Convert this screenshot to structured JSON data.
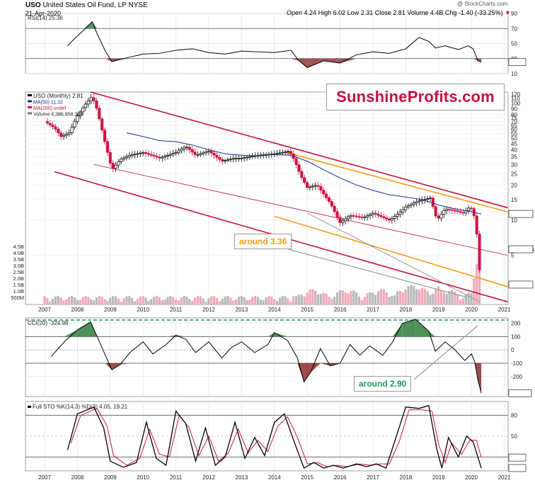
{
  "header": {
    "symbol": "USO",
    "name": "United States Oil Fund, LP",
    "exchange": "NYSE",
    "date": "21-Apr-2020",
    "watermark": "@ StockCharts.com",
    "open_label": "Open",
    "open": "4.24",
    "high_label": "High",
    "high": "6.02",
    "low_label": "Low",
    "low": "2.31",
    "close_label": "Close",
    "close": "2.81",
    "volume_label": "Volume",
    "volume": "4.4B",
    "chg_label": "Chg",
    "chg": "-1.40 (-33.25%)"
  },
  "logo_text": "SunshineProfits.com",
  "callouts": {
    "orange": "around 3.36",
    "green": "around 2.90"
  },
  "colors": {
    "up_candle": "#000000",
    "down_candle": "#cc1543",
    "ma50": "#1f2d8a",
    "ma200": "#cc1543",
    "channel": "#c4123f",
    "orange": "#f39c12",
    "gray_trend": "#8c8c8c",
    "green_fill": "#2f7d3e",
    "red_fill": "#8a2c2c",
    "sto_d": "#cc1543"
  },
  "chart_data": [
    {
      "type": "line",
      "panel": "rsi",
      "title": "RSI(14) 25.36",
      "series": [
        {
          "name": "RSI(14)",
          "last": 25.36,
          "points": [
            [
              2007.7,
              47
            ],
            [
              2007.9,
              56
            ],
            [
              2008.2,
              68
            ],
            [
              2008.45,
              79
            ],
            [
              2008.6,
              63
            ],
            [
              2008.85,
              40
            ],
            [
              2009.05,
              26
            ],
            [
              2009.5,
              31
            ],
            [
              2010,
              36
            ],
            [
              2010.5,
              37
            ],
            [
              2011,
              41
            ],
            [
              2011.5,
              43
            ],
            [
              2012,
              38
            ],
            [
              2012.5,
              36
            ],
            [
              2013,
              40
            ],
            [
              2013.5,
              39
            ],
            [
              2014,
              38
            ],
            [
              2014.5,
              41
            ],
            [
              2014.75,
              27
            ],
            [
              2015,
              18
            ],
            [
              2015.5,
              27
            ],
            [
              2016,
              24
            ],
            [
              2016.5,
              35
            ],
            [
              2017,
              39
            ],
            [
              2017.5,
              37
            ],
            [
              2018,
              43
            ],
            [
              2018.4,
              58
            ],
            [
              2018.7,
              53
            ],
            [
              2018.9,
              44
            ],
            [
              2019.2,
              47
            ],
            [
              2019.6,
              42
            ],
            [
              2019.9,
              47
            ],
            [
              2020.05,
              43
            ],
            [
              2020.2,
              27
            ],
            [
              2020.3,
              25.36
            ]
          ]
        }
      ],
      "ylim": [
        10,
        90
      ],
      "y_ticks": [
        90,
        70,
        50,
        30,
        10
      ],
      "ref_lines": [
        70,
        30
      ]
    },
    {
      "type": "candlestick",
      "panel": "price",
      "title": "USO (Monthly) 2.81",
      "log_scale": true,
      "legend": [
        "USO (Monthly) 2.81",
        "MA(50) 11.32",
        "MA(200) undef",
        "Volume 4,386,958,336"
      ],
      "y_ticks": [
        120,
        110,
        100,
        90,
        80,
        75,
        70,
        65,
        60,
        55,
        50,
        45,
        40,
        35,
        30,
        25,
        20,
        15,
        10,
        5
      ],
      "ylim": [
        1.9,
        125
      ],
      "x_ticks": [
        "2007",
        "2008",
        "2009",
        "2010",
        "2011",
        "2012",
        "2013",
        "2014",
        "2015",
        "2016",
        "2017",
        "2018",
        "2019",
        "2020",
        "2021"
      ],
      "closes": [
        [
          2007.0,
          70
        ],
        [
          2007.3,
          62
        ],
        [
          2007.5,
          52
        ],
        [
          2007.75,
          56
        ],
        [
          2008.0,
          78
        ],
        [
          2008.2,
          95
        ],
        [
          2008.45,
          115
        ],
        [
          2008.6,
          88
        ],
        [
          2008.85,
          45
        ],
        [
          2009.05,
          27
        ],
        [
          2009.3,
          33
        ],
        [
          2009.6,
          36
        ],
        [
          2010,
          38
        ],
        [
          2010.5,
          34
        ],
        [
          2011,
          38
        ],
        [
          2011.3,
          43
        ],
        [
          2011.6,
          36
        ],
        [
          2012,
          39
        ],
        [
          2012.4,
          32
        ],
        [
          2012.8,
          34
        ],
        [
          2013,
          34
        ],
        [
          2013.5,
          36
        ],
        [
          2014,
          37
        ],
        [
          2014.45,
          39
        ],
        [
          2014.6,
          33
        ],
        [
          2014.8,
          24
        ],
        [
          2015,
          19
        ],
        [
          2015.3,
          20
        ],
        [
          2015.7,
          14
        ],
        [
          2016,
          9.5
        ],
        [
          2016.3,
          11
        ],
        [
          2016.7,
          10.5
        ],
        [
          2017,
          11.5
        ],
        [
          2017.5,
          10
        ],
        [
          2017.8,
          11.5
        ],
        [
          2018,
          13
        ],
        [
          2018.35,
          14.5
        ],
        [
          2018.75,
          15.5
        ],
        [
          2018.95,
          10
        ],
        [
          2019.2,
          12.5
        ],
        [
          2019.5,
          12
        ],
        [
          2019.75,
          11.5
        ],
        [
          2019.95,
          13
        ],
        [
          2020.05,
          12
        ],
        [
          2020.15,
          8.5
        ],
        [
          2020.22,
          4.3
        ],
        [
          2020.3,
          2.81
        ]
      ],
      "series": [
        {
          "name": "MA(50)",
          "last": 11.32,
          "points": [
            [
              2009.5,
              56
            ],
            [
              2010,
              52
            ],
            [
              2010.5,
              48
            ],
            [
              2011,
              47
            ],
            [
              2011.5,
              44
            ],
            [
              2012,
              40
            ],
            [
              2012.5,
              37
            ],
            [
              2013,
              36
            ],
            [
              2013.5,
              35.5
            ],
            [
              2014,
              36.5
            ],
            [
              2014.5,
              36
            ],
            [
              2015,
              32
            ],
            [
              2015.5,
              27
            ],
            [
              2016,
              23
            ],
            [
              2016.5,
              20
            ],
            [
              2017,
              18
            ],
            [
              2017.5,
              16.5
            ],
            [
              2018,
              15.8
            ],
            [
              2018.5,
              15
            ],
            [
              2019,
              13.5
            ],
            [
              2019.5,
              12.5
            ],
            [
              2020,
              11.8
            ],
            [
              2020.3,
              11.32
            ]
          ]
        }
      ],
      "volume_max_label": "4.5B",
      "volume_ticks": [
        "4.5B",
        "4.0B",
        "3.5B",
        "3.0B",
        "2.5B",
        "2.0B",
        "1.5B",
        "1.0B",
        "500M"
      ],
      "price_tags": {
        "ma50": "11.32",
        "volume": "4386958336",
        "close": "2.81"
      }
    },
    {
      "type": "line",
      "panel": "cci",
      "title": "CCI(20) -324.98",
      "series": [
        {
          "name": "CCI(20)",
          "last": -324.98,
          "points": [
            [
              2007.2,
              -50
            ],
            [
              2007.6,
              60
            ],
            [
              2008.0,
              150
            ],
            [
              2008.4,
              210
            ],
            [
              2008.6,
              100
            ],
            [
              2008.85,
              -40
            ],
            [
              2009.05,
              -150
            ],
            [
              2009.3,
              -110
            ],
            [
              2009.6,
              -20
            ],
            [
              2010,
              60
            ],
            [
              2010.3,
              -30
            ],
            [
              2010.7,
              40
            ],
            [
              2011,
              110
            ],
            [
              2011.3,
              80
            ],
            [
              2011.6,
              -20
            ],
            [
              2012,
              60
            ],
            [
              2012.4,
              -60
            ],
            [
              2012.7,
              20
            ],
            [
              2013,
              60
            ],
            [
              2013.4,
              -20
            ],
            [
              2013.8,
              40
            ],
            [
              2014,
              130
            ],
            [
              2014.4,
              70
            ],
            [
              2014.7,
              -60
            ],
            [
              2014.9,
              -240
            ],
            [
              2015.1,
              -170
            ],
            [
              2015.4,
              10
            ],
            [
              2015.7,
              -120
            ],
            [
              2016,
              -100
            ],
            [
              2016.3,
              40
            ],
            [
              2016.6,
              -40
            ],
            [
              2016.9,
              30
            ],
            [
              2017.3,
              -40
            ],
            [
              2017.6,
              60
            ],
            [
              2017.9,
              200
            ],
            [
              2018.3,
              230
            ],
            [
              2018.7,
              140
            ],
            [
              2018.9,
              -10
            ],
            [
              2019.2,
              60
            ],
            [
              2019.5,
              0
            ],
            [
              2019.8,
              -80
            ],
            [
              2020.0,
              -30
            ],
            [
              2020.1,
              -90
            ],
            [
              2020.2,
              -230
            ],
            [
              2020.3,
              -324.98
            ]
          ]
        }
      ],
      "ylim": [
        -350,
        240
      ],
      "y_ticks": [
        200,
        100,
        0,
        -100,
        -200
      ],
      "ref_lines": [
        100,
        0,
        -100
      ]
    },
    {
      "type": "line",
      "panel": "stochastic",
      "title": "Full STO %K(14,3) %D(3) 4.05, 19.21",
      "series": [
        {
          "name": "%K(14,3)",
          "last": 4.05,
          "points": [
            [
              2007.7,
              30
            ],
            [
              2008.0,
              82
            ],
            [
              2008.5,
              92
            ],
            [
              2008.8,
              62
            ],
            [
              2009.0,
              14
            ],
            [
              2009.4,
              5
            ],
            [
              2009.8,
              12
            ],
            [
              2010.1,
              70
            ],
            [
              2010.4,
              18
            ],
            [
              2010.7,
              8
            ],
            [
              2011.0,
              86
            ],
            [
              2011.3,
              68
            ],
            [
              2011.6,
              14
            ],
            [
              2011.9,
              62
            ],
            [
              2012.2,
              8
            ],
            [
              2012.5,
              20
            ],
            [
              2012.8,
              70
            ],
            [
              2013.1,
              18
            ],
            [
              2013.4,
              48
            ],
            [
              2013.7,
              22
            ],
            [
              2014.0,
              70
            ],
            [
              2014.3,
              82
            ],
            [
              2014.6,
              42
            ],
            [
              2014.9,
              4
            ],
            [
              2015.2,
              12
            ],
            [
              2015.5,
              4
            ],
            [
              2015.8,
              8
            ],
            [
              2016.1,
              4
            ],
            [
              2016.5,
              10
            ],
            [
              2016.8,
              6
            ],
            [
              2017.1,
              10
            ],
            [
              2017.4,
              4
            ],
            [
              2017.7,
              48
            ],
            [
              2018.0,
              92
            ],
            [
              2018.4,
              90
            ],
            [
              2018.7,
              94
            ],
            [
              2018.95,
              30
            ],
            [
              2019.1,
              4
            ],
            [
              2019.3,
              48
            ],
            [
              2019.6,
              20
            ],
            [
              2019.85,
              50
            ],
            [
              2020.05,
              42
            ],
            [
              2020.3,
              4.05
            ]
          ]
        },
        {
          "name": "%D(3)",
          "last": 19.21,
          "points": [
            [
              2007.8,
              40
            ],
            [
              2008.1,
              80
            ],
            [
              2008.6,
              90
            ],
            [
              2008.9,
              65
            ],
            [
              2009.1,
              22
            ],
            [
              2009.5,
              8
            ],
            [
              2009.9,
              18
            ],
            [
              2010.2,
              60
            ],
            [
              2010.5,
              24
            ],
            [
              2010.8,
              20
            ],
            [
              2011.1,
              80
            ],
            [
              2011.4,
              62
            ],
            [
              2011.7,
              22
            ],
            [
              2012.0,
              50
            ],
            [
              2012.3,
              14
            ],
            [
              2012.6,
              26
            ],
            [
              2012.9,
              60
            ],
            [
              2013.2,
              26
            ],
            [
              2013.5,
              44
            ],
            [
              2013.8,
              28
            ],
            [
              2014.1,
              64
            ],
            [
              2014.4,
              78
            ],
            [
              2014.7,
              48
            ],
            [
              2015.0,
              10
            ],
            [
              2015.3,
              12
            ],
            [
              2015.6,
              6
            ],
            [
              2015.9,
              8
            ],
            [
              2016.2,
              6
            ],
            [
              2016.6,
              10
            ],
            [
              2016.9,
              8
            ],
            [
              2017.2,
              10
            ],
            [
              2017.5,
              10
            ],
            [
              2017.8,
              42
            ],
            [
              2018.1,
              88
            ],
            [
              2018.5,
              88
            ],
            [
              2018.8,
              86
            ],
            [
              2019.0,
              38
            ],
            [
              2019.2,
              12
            ],
            [
              2019.4,
              40
            ],
            [
              2019.7,
              24
            ],
            [
              2019.95,
              44
            ],
            [
              2020.15,
              44
            ],
            [
              2020.3,
              19.21
            ]
          ]
        }
      ],
      "ylim": [
        0,
        100
      ],
      "y_ticks": [
        80,
        50,
        20
      ],
      "ref_lines": [
        80,
        20
      ],
      "x_ticks": [
        "2007",
        "2008",
        "2009",
        "2010",
        "2011",
        "2012",
        "2013",
        "2014",
        "2015",
        "2016",
        "2017",
        "2018",
        "2019",
        "2020",
        "2021"
      ]
    }
  ]
}
